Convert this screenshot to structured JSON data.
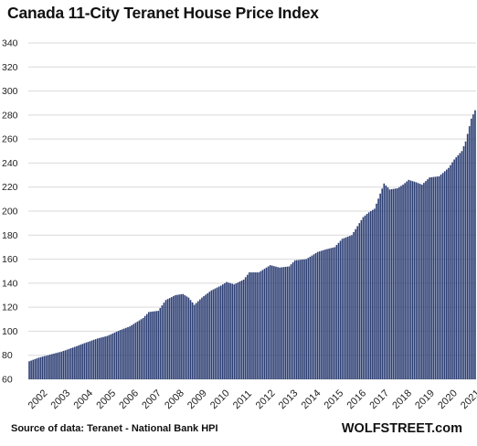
{
  "title": "Canada  11-City Teranet House Price Index",
  "source": "Source of data: Teranet - National Bank HPI",
  "brand": "WOLFSTREET.com",
  "colors": {
    "bar": "#2b3d73",
    "bar_edge": "#1a2650",
    "grid": "#d9d9d9",
    "axis_text": "#222222"
  },
  "chart_data": {
    "type": "bar",
    "title": "Canada  11-City Teranet House Price Index",
    "xlabel": "",
    "ylabel": "",
    "ylim": [
      60,
      340
    ],
    "yticks": [
      60,
      80,
      100,
      120,
      140,
      160,
      180,
      200,
      220,
      240,
      260,
      280,
      300,
      320,
      340
    ],
    "xtick_labels": [
      "2002",
      "2003",
      "2004",
      "2005",
      "2006",
      "2007",
      "2008",
      "2009",
      "2010",
      "2011",
      "2012",
      "2013",
      "2014",
      "2015",
      "2016",
      "2017",
      "2018",
      "2019",
      "2020",
      "2021"
    ],
    "frequency": "monthly",
    "start": "2002-01",
    "end": "2021-08",
    "grid": true,
    "anchors": [
      [
        "2002-01",
        75
      ],
      [
        "2002-06",
        78
      ],
      [
        "2003-01",
        81
      ],
      [
        "2003-06",
        83
      ],
      [
        "2004-01",
        87
      ],
      [
        "2004-06",
        90
      ],
      [
        "2005-01",
        94
      ],
      [
        "2005-06",
        96
      ],
      [
        "2006-01",
        101
      ],
      [
        "2006-06",
        104
      ],
      [
        "2007-01",
        111
      ],
      [
        "2007-04",
        116
      ],
      [
        "2007-09",
        117
      ],
      [
        "2008-01",
        126
      ],
      [
        "2008-06",
        130
      ],
      [
        "2008-10",
        131
      ],
      [
        "2009-01",
        128
      ],
      [
        "2009-04",
        122
      ],
      [
        "2009-08",
        128
      ],
      [
        "2010-01",
        134
      ],
      [
        "2010-06",
        138
      ],
      [
        "2010-09",
        141
      ],
      [
        "2011-01",
        139
      ],
      [
        "2011-06",
        143
      ],
      [
        "2011-09",
        149
      ],
      [
        "2012-02",
        149
      ],
      [
        "2012-08",
        155
      ],
      [
        "2013-01",
        153
      ],
      [
        "2013-06",
        154
      ],
      [
        "2013-09",
        159
      ],
      [
        "2014-03",
        160
      ],
      [
        "2014-09",
        166
      ],
      [
        "2015-01",
        168
      ],
      [
        "2015-06",
        170
      ],
      [
        "2015-10",
        177
      ],
      [
        "2016-03",
        180
      ],
      [
        "2016-09",
        195
      ],
      [
        "2016-12",
        199
      ],
      [
        "2017-03",
        202
      ],
      [
        "2017-08",
        223
      ],
      [
        "2017-11",
        218
      ],
      [
        "2018-03",
        219
      ],
      [
        "2018-06",
        222
      ],
      [
        "2018-09",
        226
      ],
      [
        "2019-01",
        224
      ],
      [
        "2019-04",
        222
      ],
      [
        "2019-08",
        228
      ],
      [
        "2020-01",
        229
      ],
      [
        "2020-06",
        236
      ],
      [
        "2020-09",
        243
      ],
      [
        "2021-01",
        250
      ],
      [
        "2021-03",
        258
      ],
      [
        "2021-06",
        277
      ],
      [
        "2021-08",
        284
      ]
    ]
  }
}
